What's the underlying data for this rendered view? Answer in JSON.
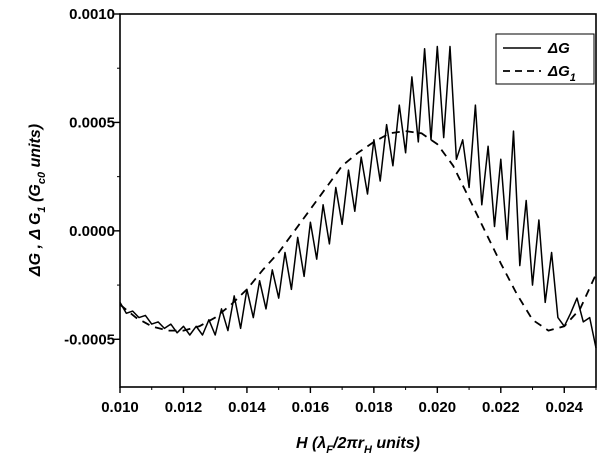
{
  "chart_data": {
    "type": "line",
    "xlabel": "H (λF/2πrH units)",
    "xlabel_parts": {
      "a": "H (λ",
      "b": "F",
      "c": "/2πr",
      "d": "H",
      "e": " units)"
    },
    "ylabel": "ΔG , Δ G1 (Gc0 units)",
    "ylabel_parts": {
      "a": "ΔG , Δ G",
      "b": "1",
      "c": " (G",
      "d": "c0",
      "e": " units)"
    },
    "xlim": [
      0.01,
      0.025
    ],
    "ylim": [
      -0.00072,
      0.001
    ],
    "x_ticks": [
      0.01,
      0.012,
      0.014,
      0.016,
      0.018,
      0.02,
      0.022,
      0.024
    ],
    "x_tick_labels": [
      "0.010",
      "0.012",
      "0.014",
      "0.016",
      "0.018",
      "0.020",
      "0.022",
      "0.024"
    ],
    "y_ticks": [
      -0.0005,
      0.0,
      0.0005,
      0.001
    ],
    "y_tick_labels": [
      "-0.0005",
      "0.0000",
      "0.0005",
      "0.0010"
    ],
    "legend": {
      "placement": "top-right"
    },
    "series": [
      {
        "name": "ΔG",
        "name_parts": {
          "a": "ΔG",
          "b": ""
        },
        "style": "solid",
        "x": [
          0.01,
          0.0102,
          0.0104,
          0.0106,
          0.0108,
          0.011,
          0.0112,
          0.0114,
          0.0116,
          0.0118,
          0.012,
          0.0122,
          0.0124,
          0.0126,
          0.0128,
          0.013,
          0.0132,
          0.0134,
          0.0136,
          0.0138,
          0.014,
          0.0142,
          0.0144,
          0.0146,
          0.0148,
          0.015,
          0.0152,
          0.0154,
          0.0156,
          0.0158,
          0.016,
          0.0162,
          0.0164,
          0.0166,
          0.0168,
          0.017,
          0.0172,
          0.0174,
          0.0176,
          0.0178,
          0.018,
          0.0182,
          0.0184,
          0.0186,
          0.0188,
          0.019,
          0.0192,
          0.0194,
          0.0196,
          0.0198,
          0.02,
          0.0202,
          0.0204,
          0.0206,
          0.0208,
          0.021,
          0.0212,
          0.0214,
          0.0216,
          0.0218,
          0.022,
          0.0222,
          0.0224,
          0.0226,
          0.0228,
          0.023,
          0.0232,
          0.0234,
          0.0236,
          0.0238,
          0.024,
          0.0242,
          0.0244,
          0.0246,
          0.0248,
          0.025
        ],
        "y": [
          -0.00033,
          -0.00038,
          -0.00037,
          -0.0004,
          -0.00039,
          -0.00043,
          -0.00042,
          -0.00045,
          -0.00043,
          -0.00047,
          -0.00044,
          -0.00048,
          -0.00044,
          -0.00048,
          -0.00041,
          -0.00048,
          -0.00036,
          -0.00046,
          -0.0003,
          -0.00045,
          -0.00027,
          -0.0004,
          -0.00023,
          -0.00036,
          -0.00018,
          -0.00031,
          -0.0001,
          -0.00027,
          -3e-05,
          -0.00021,
          4e-05,
          -0.00013,
          0.00012,
          -6e-05,
          0.0002,
          3e-05,
          0.00028,
          9e-05,
          0.00034,
          0.00017,
          0.00042,
          0.00023,
          0.00049,
          0.0003,
          0.00058,
          0.00036,
          0.00071,
          0.00041,
          0.00084,
          0.00042,
          0.00085,
          0.00043,
          0.00085,
          0.00033,
          0.00042,
          0.0002,
          0.00058,
          0.00012,
          0.00039,
          2e-05,
          0.00033,
          -4e-05,
          0.00046,
          -0.00016,
          0.00014,
          -0.00025,
          5e-05,
          -0.00033,
          -0.0001,
          -0.0004,
          -0.00044,
          -0.00038,
          -0.00031,
          -0.00042,
          -0.0004,
          -0.00054
        ]
      },
      {
        "name": "ΔG1",
        "name_parts": {
          "a": "ΔG",
          "b": "1"
        },
        "style": "dashed",
        "x": [
          0.01,
          0.0105,
          0.011,
          0.0115,
          0.012,
          0.0125,
          0.013,
          0.0135,
          0.014,
          0.0145,
          0.015,
          0.0155,
          0.016,
          0.0165,
          0.017,
          0.0175,
          0.018,
          0.0185,
          0.019,
          0.0195,
          0.02,
          0.0205,
          0.021,
          0.0215,
          0.022,
          0.0225,
          0.023,
          0.0235,
          0.024,
          0.0245,
          0.025
        ],
        "y": [
          -0.00034,
          -0.0004,
          -0.00044,
          -0.00046,
          -0.00046,
          -0.00044,
          -0.0004,
          -0.00034,
          -0.00027,
          -0.00018,
          -0.0001,
          0.0,
          0.0001,
          0.0002,
          0.0003,
          0.00036,
          0.00041,
          0.00045,
          0.00046,
          0.00045,
          0.0004,
          0.0003,
          0.00015,
          0.0,
          -0.00015,
          -0.00029,
          -0.00041,
          -0.00046,
          -0.00044,
          -0.00036,
          -0.0002
        ]
      }
    ]
  }
}
